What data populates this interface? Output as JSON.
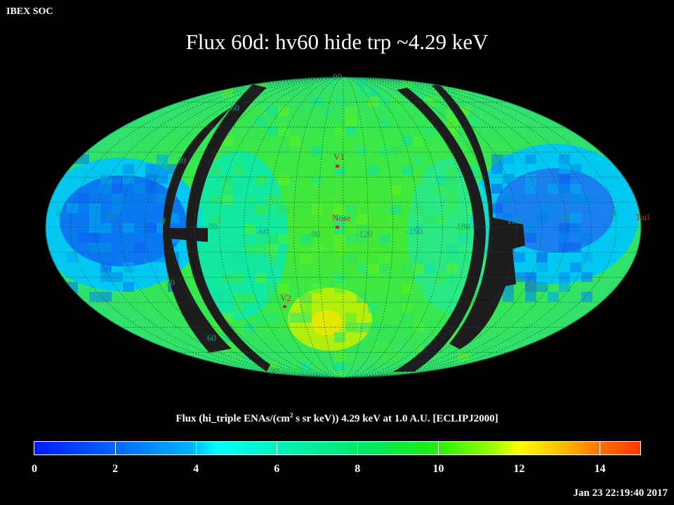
{
  "header": {
    "brand": "IBEX SOC",
    "title": "Flux   60d: hv60 hide trp ~4.29 keV"
  },
  "map": {
    "projection": "Mollweide (ellipse)",
    "markers": [
      {
        "name": "V1",
        "label": "V1"
      },
      {
        "name": "Nose",
        "label": "Nose"
      },
      {
        "name": "V2",
        "label": "V2"
      },
      {
        "name": "Tail",
        "label": "Tail"
      }
    ],
    "lat_labels": [
      "90",
      "60",
      "30",
      "0",
      "30",
      "60",
      "90"
    ],
    "lon_labels": [
      "60",
      "30",
      "0",
      "-30",
      "-60",
      "-90",
      "-120",
      "-150",
      "180",
      "150",
      "120",
      "90"
    ],
    "colors": {
      "background": "#000000",
      "marker": "#c82828",
      "grid_label": "#1a9a7a",
      "no_data": "#1c1c1c"
    }
  },
  "colorbar": {
    "title": "Flux (hi_triple ENAs/(cm",
    "title_sup": "2",
    "title_rest": " s sr keV))  4.29 keV at 1.0 A.U. [ECLIPJ2000]",
    "range": [
      0,
      15
    ],
    "ticks": [
      "0",
      "2",
      "4",
      "6",
      "8",
      "10",
      "12",
      "14"
    ]
  },
  "footer": {
    "timestamp": "Jan 23 22:19:40 2017"
  }
}
